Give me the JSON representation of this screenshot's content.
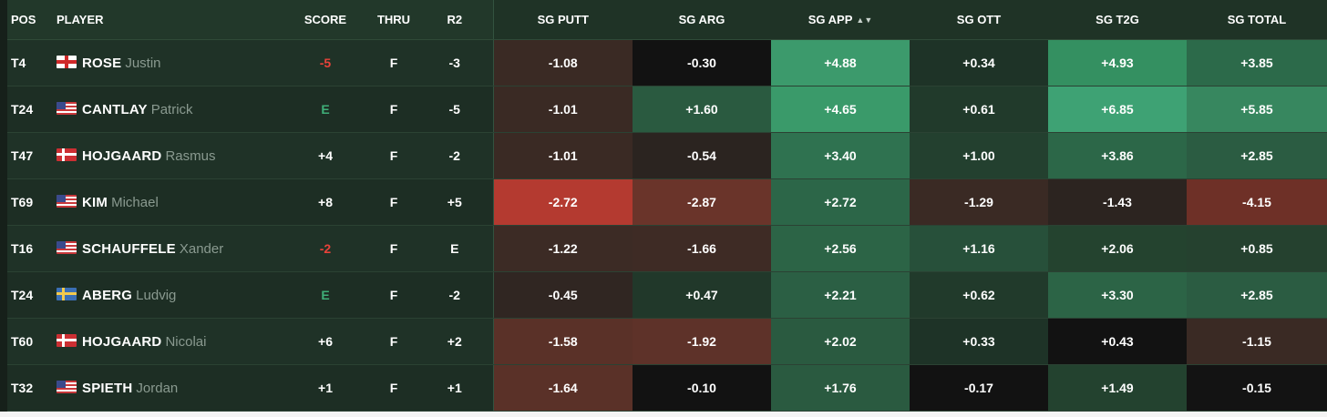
{
  "columns": {
    "pos": "POS",
    "player": "PLAYER",
    "score": "SCORE",
    "thru": "THRU",
    "r2": "R2",
    "sg_putt": "SG PUTT",
    "sg_arg": "SG ARG",
    "sg_app": "SG APP",
    "sg_ott": "SG OTT",
    "sg_t2g": "SG T2G",
    "sg_total": "SG TOTAL"
  },
  "sort_icon": "sort-arrows-icon",
  "colors": {
    "score_under": "#e8423a",
    "score_even": "#3fae78",
    "score_over": "#ffffff"
  },
  "rows": [
    {
      "pos": "T4",
      "flag": "england",
      "last": "ROSE",
      "first": "Justin",
      "score": "-5",
      "score_type": "under",
      "thru": "F",
      "r2": "-3",
      "sg": [
        {
          "v": "-1.08",
          "c": "#3a2a24"
        },
        {
          "v": "-0.30",
          "c": "#121212"
        },
        {
          "v": "+4.88",
          "c": "#3c9a6c"
        },
        {
          "v": "+0.34",
          "c": "#1e3327"
        },
        {
          "v": "+4.93",
          "c": "#349061"
        },
        {
          "v": "+3.85",
          "c": "#2c6a4a"
        }
      ]
    },
    {
      "pos": "T24",
      "flag": "usa",
      "last": "CANTLAY",
      "first": "Patrick",
      "score": "E",
      "score_type": "even",
      "thru": "F",
      "r2": "-5",
      "sg": [
        {
          "v": "-1.01",
          "c": "#3a2a24"
        },
        {
          "v": "+1.60",
          "c": "#2a5a40"
        },
        {
          "v": "+4.65",
          "c": "#3a9a6a"
        },
        {
          "v": "+0.61",
          "c": "#213a2b"
        },
        {
          "v": "+6.85",
          "c": "#3ea274"
        },
        {
          "v": "+5.85",
          "c": "#37875f"
        }
      ]
    },
    {
      "pos": "T47",
      "flag": "denmark",
      "last": "HOJGAARD",
      "first": "Rasmus",
      "score": "+4",
      "score_type": "over",
      "thru": "F",
      "r2": "-2",
      "sg": [
        {
          "v": "-1.01",
          "c": "#3a2a24"
        },
        {
          "v": "-0.54",
          "c": "#2b2420"
        },
        {
          "v": "+3.40",
          "c": "#2f7250"
        },
        {
          "v": "+1.00",
          "c": "#23402f"
        },
        {
          "v": "+3.86",
          "c": "#2c6748"
        },
        {
          "v": "+2.85",
          "c": "#2b5c42"
        }
      ]
    },
    {
      "pos": "T69",
      "flag": "usa",
      "last": "KIM",
      "first": "Michael",
      "score": "+8",
      "score_type": "over",
      "thru": "F",
      "r2": "+5",
      "sg": [
        {
          "v": "-2.72",
          "c": "#b43a30"
        },
        {
          "v": "-2.87",
          "c": "#6a342a"
        },
        {
          "v": "+2.72",
          "c": "#2c6648"
        },
        {
          "v": "-1.29",
          "c": "#3a2a24"
        },
        {
          "v": "-1.43",
          "c": "#2c2420"
        },
        {
          "v": "-4.15",
          "c": "#6e3027"
        }
      ]
    },
    {
      "pos": "T16",
      "flag": "usa",
      "last": "SCHAUFFELE",
      "first": "Xander",
      "score": "-2",
      "score_type": "under",
      "thru": "F",
      "r2": "E",
      "sg": [
        {
          "v": "-1.22",
          "c": "#3c2b25"
        },
        {
          "v": "-1.66",
          "c": "#3e2b25"
        },
        {
          "v": "+2.56",
          "c": "#2c6446"
        },
        {
          "v": "+1.16",
          "c": "#27503a"
        },
        {
          "v": "+2.06",
          "c": "#24432f"
        },
        {
          "v": "+0.85",
          "c": "#25412f"
        }
      ]
    },
    {
      "pos": "T24",
      "flag": "sweden",
      "last": "ABERG",
      "first": "Ludvig",
      "score": "E",
      "score_type": "even",
      "thru": "F",
      "r2": "-2",
      "sg": [
        {
          "v": "-0.45",
          "c": "#302622"
        },
        {
          "v": "+0.47",
          "c": "#21382a"
        },
        {
          "v": "+2.21",
          "c": "#2b5f44"
        },
        {
          "v": "+0.62",
          "c": "#213a2b"
        },
        {
          "v": "+3.30",
          "c": "#2c6446"
        },
        {
          "v": "+2.85",
          "c": "#2b5c42"
        }
      ]
    },
    {
      "pos": "T60",
      "flag": "denmark",
      "last": "HOJGAARD",
      "first": "Nicolai",
      "score": "+6",
      "score_type": "over",
      "thru": "F",
      "r2": "+2",
      "sg": [
        {
          "v": "-1.58",
          "c": "#5a3128"
        },
        {
          "v": "-1.92",
          "c": "#5e3229"
        },
        {
          "v": "+2.02",
          "c": "#2a5a40"
        },
        {
          "v": "+0.33",
          "c": "#1e3327"
        },
        {
          "v": "+0.43",
          "c": "#121212"
        },
        {
          "v": "-1.15",
          "c": "#3a2a24"
        }
      ]
    },
    {
      "pos": "T32",
      "flag": "usa",
      "last": "SPIETH",
      "first": "Jordan",
      "score": "+1",
      "score_type": "over",
      "thru": "F",
      "r2": "+1",
      "sg": [
        {
          "v": "-1.64",
          "c": "#5a3128"
        },
        {
          "v": "-0.10",
          "c": "#121212"
        },
        {
          "v": "+1.76",
          "c": "#2a5a40"
        },
        {
          "v": "-0.17",
          "c": "#121212"
        },
        {
          "v": "+1.49",
          "c": "#23422f"
        },
        {
          "v": "-0.15",
          "c": "#131313"
        }
      ]
    }
  ]
}
